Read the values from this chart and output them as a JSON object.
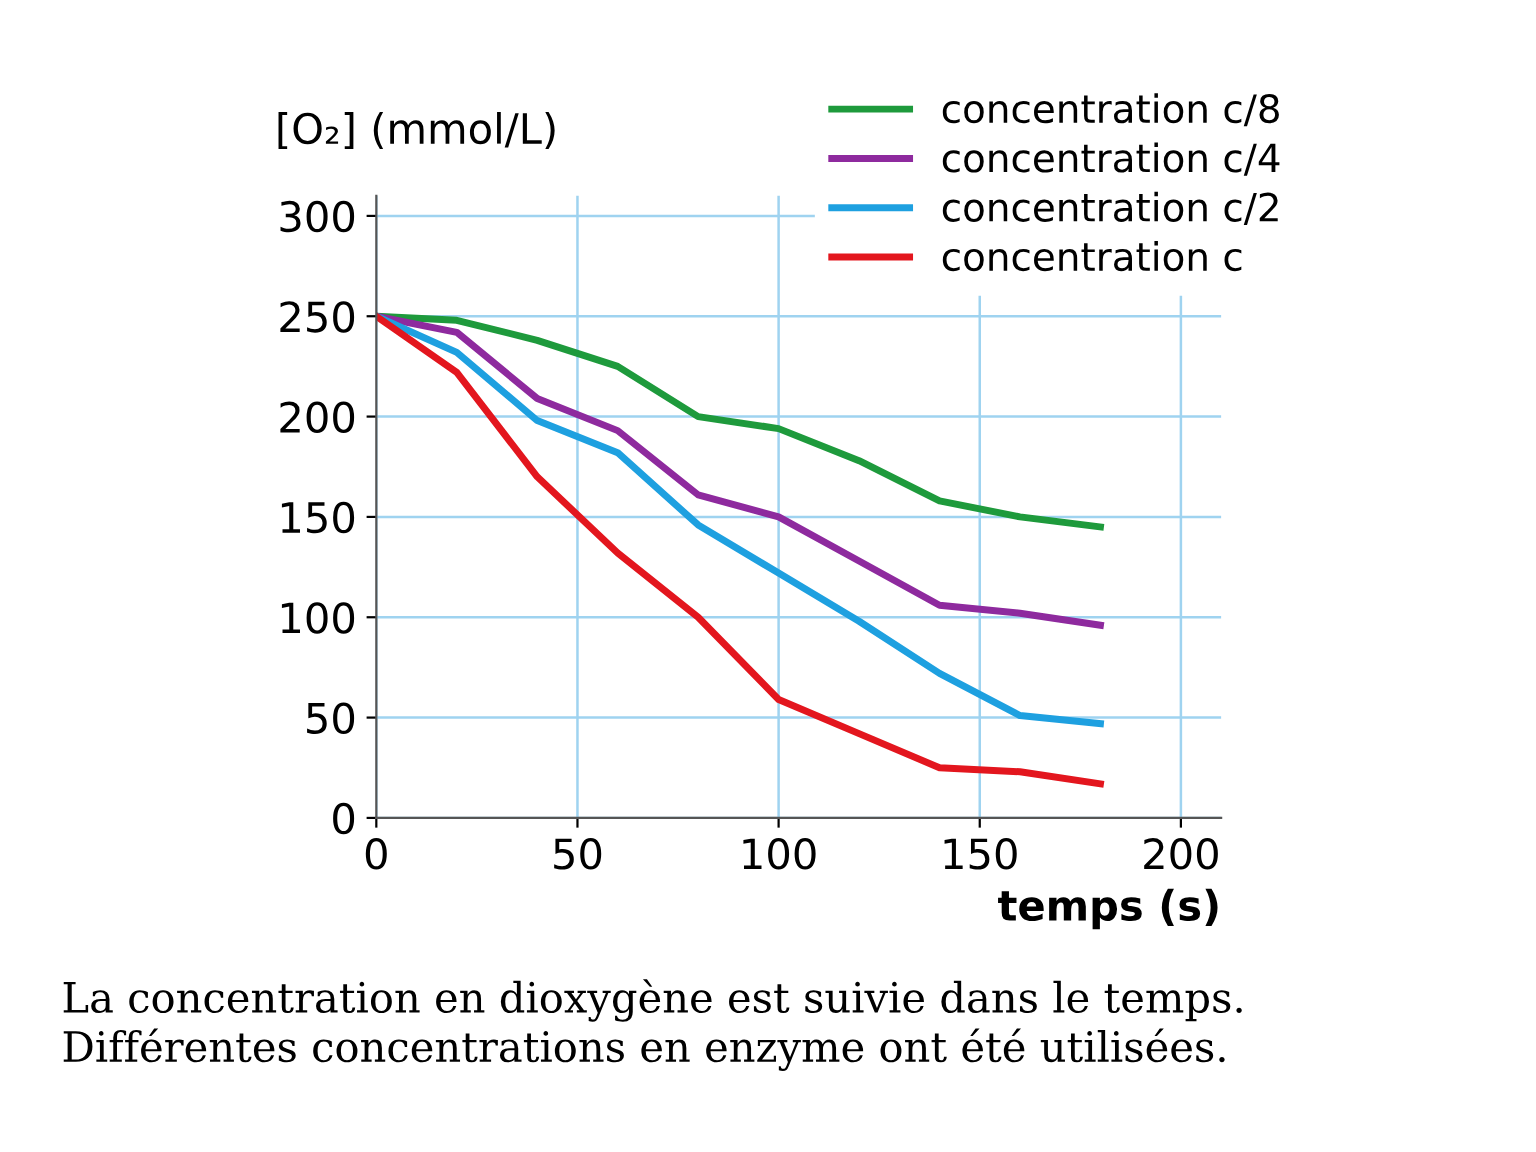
{
  "chart_data": {
    "type": "line",
    "ylabel": "[O₂] (mmol/L)",
    "xlabel": "temps (s)",
    "x": [
      0,
      20,
      40,
      60,
      80,
      100,
      120,
      140,
      160,
      180
    ],
    "series": [
      {
        "name": "concentration c/8",
        "color": "#1e9a3c",
        "values": [
          250,
          248,
          238,
          225,
          200,
          194,
          178,
          158,
          150,
          145
        ]
      },
      {
        "name": "concentration c/4",
        "color": "#8e2a9e",
        "values": [
          250,
          242,
          209,
          193,
          161,
          150,
          128,
          106,
          102,
          96
        ]
      },
      {
        "name": "concentration c/2",
        "color": "#1ea0e0",
        "values": [
          250,
          232,
          198,
          182,
          146,
          122,
          98,
          72,
          51,
          47
        ]
      },
      {
        "name": "concentration c",
        "color": "#e3161e",
        "values": [
          250,
          222,
          170,
          132,
          100,
          59,
          42,
          25,
          23,
          17
        ]
      }
    ],
    "xlim": [
      0,
      210
    ],
    "ylim": [
      0,
      310
    ],
    "xticks": [
      0,
      50,
      100,
      150,
      200
    ],
    "yticks": [
      0,
      50,
      100,
      150,
      200,
      250,
      300
    ],
    "grid": true,
    "legend": "top right",
    "marker": "none",
    "line_style": "solid",
    "annotations": [
      "La concentration en dioxygène est suivie dans le temps.\nDifférentes concentrations en enzyme ont été utilisées."
    ]
  }
}
